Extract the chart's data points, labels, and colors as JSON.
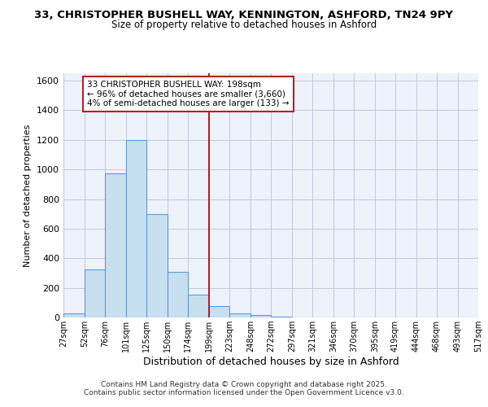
{
  "title": "33, CHRISTOPHER BUSHELL WAY, KENNINGTON, ASHFORD, TN24 9PY",
  "subtitle": "Size of property relative to detached houses in Ashford",
  "xlabel": "Distribution of detached houses by size in Ashford",
  "ylabel": "Number of detached properties",
  "bins": [
    27,
    52,
    76,
    101,
    125,
    150,
    174,
    199,
    223,
    248,
    272,
    297,
    321,
    346,
    370,
    395,
    419,
    444,
    468,
    493,
    517
  ],
  "counts": [
    25,
    325,
    975,
    1200,
    700,
    310,
    155,
    75,
    25,
    15,
    5,
    2,
    0,
    0,
    0,
    0,
    0,
    0,
    0,
    2
  ],
  "bar_color": "#c8dff0",
  "bar_edge_color": "#5b9bd5",
  "vline_x": 199,
  "vline_color": "#b22222",
  "annotation_line1": "33 CHRISTOPHER BUSHELL WAY: 198sqm",
  "annotation_line2": "← 96% of detached houses are smaller (3,660)",
  "annotation_line3": "4% of semi-detached houses are larger (133) →",
  "annotation_box_color": "#ffffff",
  "annotation_box_edge": "#b22222",
  "bg_color": "#eef2fb",
  "grid_color": "#c0c8d8",
  "tick_labels": [
    "27sqm",
    "52sqm",
    "76sqm",
    "101sqm",
    "125sqm",
    "150sqm",
    "174sqm",
    "199sqm",
    "223sqm",
    "248sqm",
    "272sqm",
    "297sqm",
    "321sqm",
    "346sqm",
    "370sqm",
    "395sqm",
    "419sqm",
    "444sqm",
    "468sqm",
    "493sqm",
    "517sqm"
  ],
  "ylim": [
    0,
    1650
  ],
  "yticks": [
    0,
    200,
    400,
    600,
    800,
    1000,
    1200,
    1400,
    1600
  ],
  "footnote1": "Contains HM Land Registry data © Crown copyright and database right 2025.",
  "footnote2": "Contains public sector information licensed under the Open Government Licence v3.0."
}
